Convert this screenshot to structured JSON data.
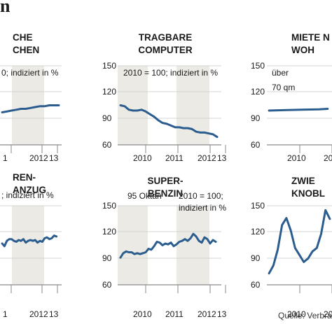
{
  "header_fragment": "n",
  "source_note": "Quelle: Verbra",
  "colors": {
    "line": "#2b5d8f",
    "shade": "#eceae5",
    "grid": "#c8c8c8",
    "text": "#1a1a1a"
  },
  "chart_data": [
    {
      "type": "line",
      "title": [
        "CHE",
        "CHEN"
      ],
      "annotations": [
        "0; indiziert in %"
      ],
      "y_ticks": [],
      "x_ticks": [
        "1",
        "2012",
        "13"
      ],
      "ylim": [
        60,
        150
      ],
      "shaded_years": [
        2012
      ],
      "x": [
        2010.9,
        2011.1,
        2011.3,
        2011.5,
        2011.7,
        2011.9,
        2012.1,
        2012.3,
        2012.5,
        2012.7,
        2012.9,
        2013.1,
        2013.3
      ],
      "values": [
        97,
        98,
        99,
        100,
        101,
        101,
        102,
        103,
        104,
        104,
        105,
        105,
        105
      ]
    },
    {
      "type": "line",
      "title": [
        "TRAGBARE",
        "COMPUTER"
      ],
      "annotations": [
        "2010 = 100; indiziert in %"
      ],
      "y_ticks": [
        "150",
        "120",
        "90",
        "60"
      ],
      "x_ticks": [
        "2010",
        "2011",
        "2012",
        "13"
      ],
      "ylim": [
        60,
        150
      ],
      "shaded_years": [
        2010,
        2012
      ],
      "x": [
        2009.9,
        2010.05,
        2010.2,
        2010.35,
        2010.5,
        2010.65,
        2010.8,
        2010.95,
        2011.1,
        2011.25,
        2011.4,
        2011.55,
        2011.7,
        2011.85,
        2012.0,
        2012.15,
        2012.3,
        2012.45,
        2012.6,
        2012.75,
        2012.9,
        2013.05,
        2013.2,
        2013.35
      ],
      "values": [
        105,
        104,
        100,
        99,
        99,
        100,
        98,
        95,
        92,
        88,
        85,
        84,
        82,
        80,
        80,
        79,
        79,
        78,
        75,
        74,
        74,
        73,
        72,
        69
      ]
    },
    {
      "type": "line",
      "title": [
        "MIETE N",
        "WOH"
      ],
      "annotations": [
        "über",
        "70  qm"
      ],
      "y_ticks": [
        "150",
        "120",
        "90",
        "60"
      ],
      "x_ticks": [
        "2010",
        "20"
      ],
      "ylim": [
        60,
        150
      ],
      "shaded_years": [],
      "x": [
        2009.85,
        2010.2,
        2010.6,
        2011.0,
        2011.2
      ],
      "values": [
        99,
        99.5,
        100,
        100.5,
        101
      ]
    },
    {
      "type": "line",
      "title": [
        "REN-",
        "ANZUG"
      ],
      "annotations": [
        "; indiziert in %"
      ],
      "y_ticks": [],
      "x_ticks": [
        "1",
        "2012",
        "13"
      ],
      "ylim": [
        60,
        150
      ],
      "shaded_years": [
        2012
      ],
      "x": [
        2010.9,
        2011.0,
        2011.1,
        2011.2,
        2011.3,
        2011.4,
        2011.5,
        2011.6,
        2011.7,
        2011.8,
        2011.9,
        2012.0,
        2012.1,
        2012.2,
        2012.3,
        2012.4,
        2012.5,
        2012.6,
        2012.7,
        2012.8,
        2012.9,
        2013.0,
        2013.1,
        2013.2
      ],
      "values": [
        107,
        104,
        110,
        112,
        112,
        110,
        109,
        111,
        110,
        112,
        108,
        110,
        111,
        110,
        111,
        108,
        110,
        109,
        113,
        114,
        112,
        113,
        116,
        115
      ]
    },
    {
      "type": "line",
      "title": [
        "SUPER-",
        "BENZIN"
      ],
      "annotations": [
        "95 Oktan",
        "2010 = 100;",
        "indiziert in %"
      ],
      "y_ticks": [
        "150",
        "120",
        "90",
        "60"
      ],
      "x_ticks": [
        "2010",
        "2011",
        "2012",
        "13"
      ],
      "ylim": [
        60,
        150
      ],
      "shaded_years": [
        2010,
        2012
      ],
      "x": [
        2009.9,
        2010.0,
        2010.1,
        2010.2,
        2010.3,
        2010.4,
        2010.5,
        2010.6,
        2010.7,
        2010.8,
        2010.9,
        2011.0,
        2011.1,
        2011.2,
        2011.3,
        2011.4,
        2011.5,
        2011.6,
        2011.7,
        2011.8,
        2011.9,
        2012.0,
        2012.1,
        2012.2,
        2012.3,
        2012.4,
        2012.5,
        2012.6,
        2012.7,
        2012.8,
        2012.9,
        2013.0,
        2013.1,
        2013.2,
        2013.3
      ],
      "values": [
        91,
        96,
        98,
        97,
        97,
        95,
        96,
        95,
        96,
        97,
        101,
        100,
        104,
        109,
        108,
        105,
        107,
        106,
        108,
        104,
        106,
        109,
        110,
        112,
        110,
        113,
        118,
        115,
        110,
        108,
        114,
        112,
        107,
        111,
        109
      ]
    },
    {
      "type": "line",
      "title": [
        "ZWIE",
        "KNOBL"
      ],
      "annotations": [],
      "y_ticks": [
        "150",
        "120",
        "90",
        "60"
      ],
      "x_ticks": [
        "2010",
        "20"
      ],
      "ylim": [
        60,
        150
      ],
      "shaded_years": [],
      "x": [
        2009.85,
        2009.95,
        2010.05,
        2010.15,
        2010.25,
        2010.35,
        2010.45,
        2010.55,
        2010.65,
        2010.75,
        2010.85,
        2010.95,
        2011.05,
        2011.15,
        2011.25
      ],
      "values": [
        73,
        82,
        100,
        128,
        136,
        122,
        102,
        94,
        86,
        90,
        98,
        102,
        118,
        145,
        135
      ]
    }
  ]
}
